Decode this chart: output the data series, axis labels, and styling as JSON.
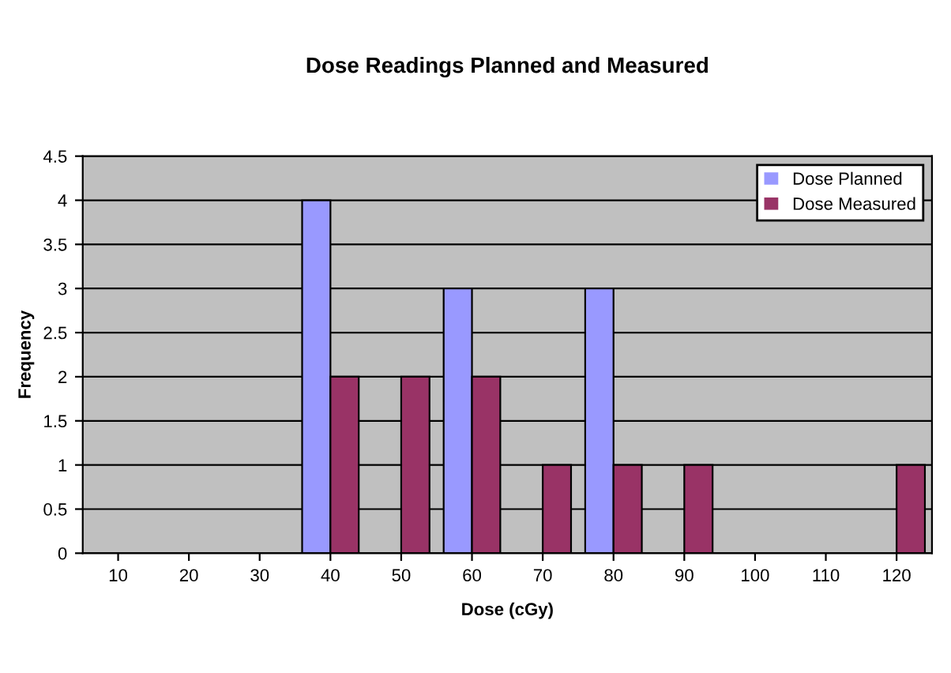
{
  "chart_data": {
    "type": "bar",
    "title": "Dose Readings Planned and Measured",
    "xlabel": "Dose (cGy)",
    "ylabel": "Frequency",
    "categories": [
      "10",
      "20",
      "30",
      "40",
      "50",
      "60",
      "70",
      "80",
      "90",
      "100",
      "110",
      "120"
    ],
    "series": [
      {
        "name": "Dose Planned",
        "color": "#9999ff",
        "values": [
          0,
          0,
          0,
          4,
          0,
          3,
          0,
          3,
          0,
          0,
          0,
          0
        ]
      },
      {
        "name": "Dose Measured",
        "color": "#993366",
        "values": [
          0,
          0,
          0,
          2,
          2,
          2,
          1,
          1,
          1,
          0,
          0,
          1
        ]
      }
    ],
    "ylim": [
      0,
      4.5
    ],
    "yticks": [
      0,
      0.5,
      1,
      1.5,
      2,
      2.5,
      3,
      3.5,
      4,
      4.5
    ],
    "grid": "y",
    "legend": "top right"
  }
}
